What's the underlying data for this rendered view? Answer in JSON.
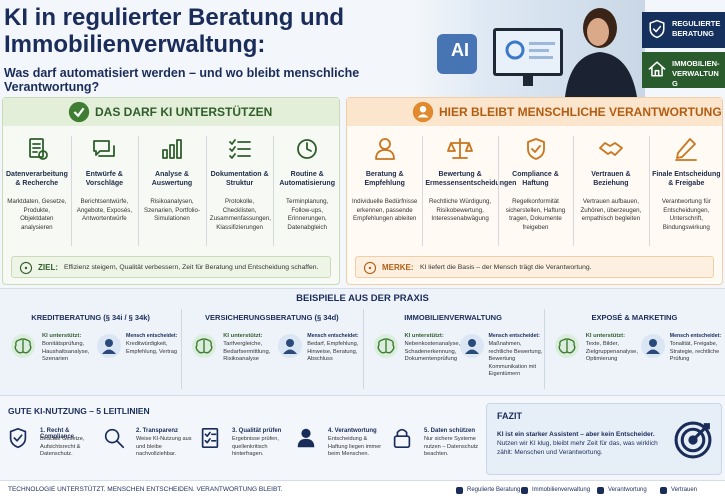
{
  "header": {
    "title": "KI in regulierter Beratung und Immobilienverwaltung:",
    "subtitle": "Was darf automatisiert werden – und wo bleibt menschliche Verantwortung?",
    "screen_text": "AI",
    "badges": [
      "REGULIERTE BERATUNG",
      "IMMOBILIEN-VERWALTUNG"
    ]
  },
  "ki_panel": {
    "title": "DAS DARF KI UNTERSTÜTZEN",
    "items": [
      {
        "title": "Datenverarbeitung & Recherche",
        "text": "Marktdaten, Gesetze, Produkte, Objektdaten analysieren"
      },
      {
        "title": "Entwürfe & Vorschläge",
        "text": "Berichtsentwürfe, Angebote, Exposés, Antwortentwürfe"
      },
      {
        "title": "Analyse & Auswertung",
        "text": "Risikoanalysen, Szenarien, Portfolio-Simulationen"
      },
      {
        "title": "Dokumentation & Struktur",
        "text": "Protokolle, Checklisten, Zusammenfassungen, Klassifizierungen"
      },
      {
        "title": "Routine & Automatisierung",
        "text": "Terminplanung, Follow-ups, Erinnerungen, Datenabgleich"
      }
    ],
    "note_label": "ZIEL:",
    "note": "Effizienz steigern, Qualität verbessern, Zeit für Beratung und Entscheidung schaffen."
  },
  "human_panel": {
    "title": "HIER BLEIBT MENSCHLICHE VERANTWORTUNG",
    "items": [
      {
        "title": "Beratung & Empfehlung",
        "text": "Individuelle Bedürfnisse erkennen, passende Empfehlungen ableiten"
      },
      {
        "title": "Bewertung & Ermessensentscheidungen",
        "text": "Rechtliche Würdigung, Risikobewertung, Interessenabwägung"
      },
      {
        "title": "Compliance & Haftung",
        "text": "Regelkonformität sicherstellen, Haftung tragen, Dokumente freigeben"
      },
      {
        "title": "Vertrauen & Beziehung",
        "text": "Vertrauen aufbauen, Zuhören, überzeugen, empathisch begleiten"
      },
      {
        "title": "Finale Entscheidung & Freigabe",
        "text": "Verantwortung für Entscheidungen, Unterschrift, Bindungswirkung"
      }
    ],
    "note_label": "MERKE:",
    "note": "KI liefert die Basis – der Mensch trägt die Verantwortung."
  },
  "examples": {
    "title": "BEISPIELE AUS DER PRAXIS",
    "items": [
      {
        "title": "KREDITBERATUNG (§ 34i / § 34k)",
        "ki_label": "KI unterstützt:",
        "ki_text": "Bonitätsprüfung, Haushaltsanalyse, Szenarien",
        "human_label": "Mensch entscheidet:",
        "human_text": "Kreditwürdigkeit, Empfehlung, Vertrag"
      },
      {
        "title": "VERSICHERUNGSBERATUNG (§ 34d)",
        "ki_label": "KI unterstützt:",
        "ki_text": "Tarifvergleiche, Bedarfsermittlung, Risikoanalyse",
        "human_label": "Mensch entscheidet:",
        "human_text": "Bedarf, Empfehlung, Hinweise, Beratung, Abschluss"
      },
      {
        "title": "IMMOBILIENVERWALTUNG",
        "ki_label": "KI unterstützt:",
        "ki_text": "Nebenkostenanalyse, Schadenerkennung, Dokumentenprüfung",
        "human_label": "Mensch entscheidet:",
        "human_text": "Maßnahmen, rechtliche Bewertung, Bewertung Kommunikation mit Eigentümern"
      },
      {
        "title": "EXPOSÉ & MARKETING",
        "ki_label": "KI unterstützt:",
        "ki_text": "Texte, Bilder, Zielgruppenanalyse, Optimierung",
        "human_label": "Mensch entscheidet:",
        "human_text": "Tonalität, Freigabe, Strategie, rechtliche Prüfung"
      }
    ]
  },
  "guidelines": {
    "title": "GUTE KI-NUTZUNG – 5 LEITLINIEN",
    "items": [
      {
        "title": "1. Recht & Compliance",
        "text": "Beachte Gesetze, Aufsichtsrecht & Datenschutz."
      },
      {
        "title": "2. Transparenz",
        "text": "Weise KI-Nutzung aus und bleibe nachvollziehbar."
      },
      {
        "title": "3. Qualität prüfen",
        "text": "Ergebnisse prüfen, quellenkritisch hinterfragen."
      },
      {
        "title": "4. Verantwortung",
        "text": "Entscheidung & Haftung liegen immer beim Menschen."
      },
      {
        "title": "5. Daten schützen",
        "text": "Nur sichere Systeme nutzen – Datenschutz beachten."
      }
    ]
  },
  "conclusion": {
    "title": "FAZIT",
    "lead": "KI ist ein starker Assistent – aber kein Entscheider.",
    "text": "Nutzen wir KI klug, bleibt mehr Zeit für das, was wirklich zählt: Menschen und Verantwortung."
  },
  "footer": {
    "slogan": "TECHNOLOGIE UNTERSTÜTZT. MENSCHEN ENTSCHEIDEN. VERANTWORTUNG BLEIBT.",
    "legend": [
      "Regulierte Beratung",
      "Immobilienverwaltung",
      "Verantwortung",
      "Vertrauen"
    ]
  }
}
